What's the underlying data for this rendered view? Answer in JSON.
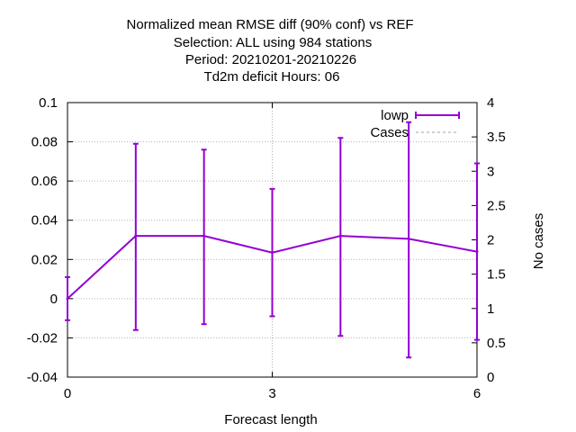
{
  "chart_data": {
    "type": "line",
    "title_lines": [
      "Normalized mean RMSE diff (90% conf) vs REF",
      "Selection: ALL using   984 stations",
      "Period: 20210201-20210226",
      "Td2m deficit   Hours:  06"
    ],
    "xlabel": "Forecast length",
    "ylabel": "",
    "y2label": "No cases",
    "xlim": [
      0,
      6
    ],
    "ylim": [
      -0.04,
      0.1
    ],
    "y2lim": [
      0,
      4
    ],
    "xticks": [
      "0",
      "3",
      "6"
    ],
    "yticks": [
      "-0.04",
      "-0.02",
      "0",
      "0.02",
      "0.04",
      "0.06",
      "0.08",
      "0.1"
    ],
    "y2ticks": [
      "0",
      "0.5",
      "1",
      "1.5",
      "2",
      "2.5",
      "3",
      "3.5",
      "4"
    ],
    "grid": true,
    "legend_position": "top-right",
    "series": [
      {
        "name": "lowp",
        "color": "#9400d3",
        "style": "line-with-errorbars",
        "x": [
          0,
          1,
          2,
          3,
          4,
          5,
          6
        ],
        "y": [
          0.0,
          0.032,
          0.032,
          0.0235,
          0.032,
          0.0305,
          0.024
        ],
        "y_low": [
          -0.011,
          -0.016,
          -0.013,
          -0.009,
          -0.019,
          -0.03,
          -0.021
        ],
        "y_high": [
          0.011,
          0.079,
          0.076,
          0.056,
          0.082,
          0.09,
          0.069
        ]
      },
      {
        "name": "Cases",
        "color": "#a0a0a0",
        "style": "dashed",
        "axis": "y2",
        "x": [],
        "y": []
      }
    ]
  }
}
